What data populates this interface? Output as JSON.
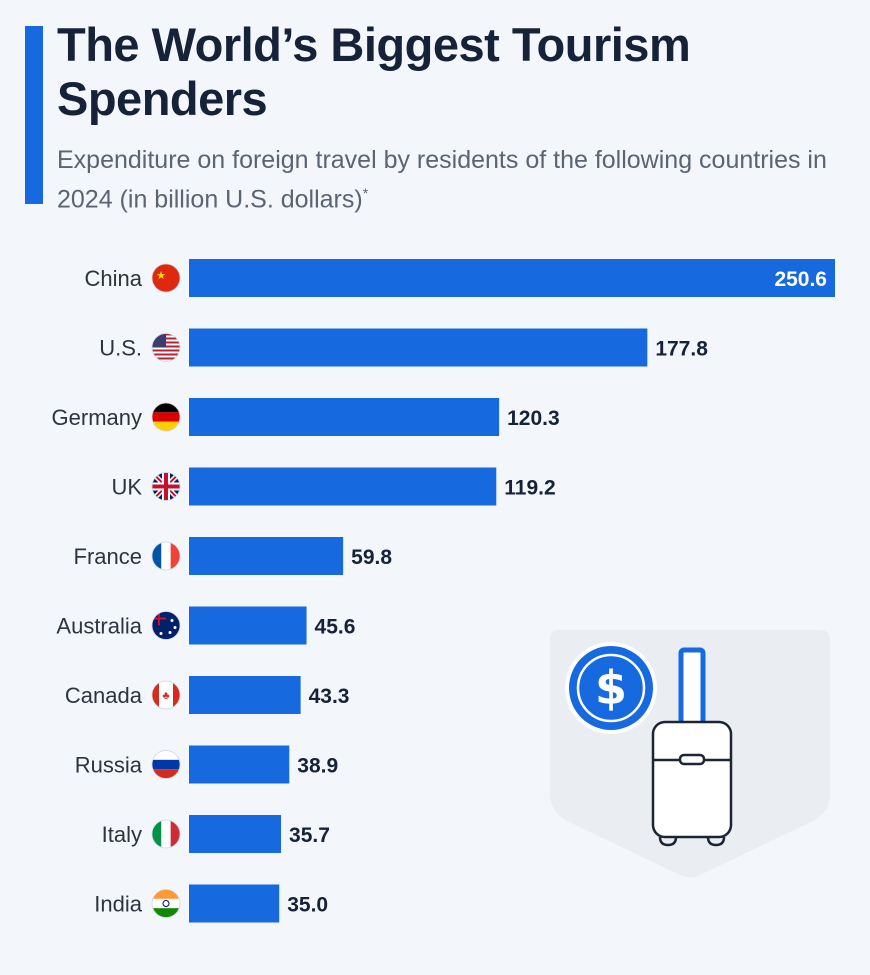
{
  "chart_data": {
    "type": "bar",
    "orientation": "horizontal",
    "title": "The World’s Biggest Tourism Spenders",
    "subtitle": "Expenditure on foreign travel by residents of the following countries in 2024 (in billion U.S. dollars)",
    "subtitle_note": "*",
    "categories": [
      "China",
      "U.S.",
      "Germany",
      "UK",
      "France",
      "Australia",
      "Canada",
      "Russia",
      "Italy",
      "India"
    ],
    "values": [
      250.6,
      177.8,
      120.3,
      119.2,
      59.8,
      45.6,
      43.3,
      38.9,
      35.7,
      35.0
    ],
    "value_labels": [
      "250.6",
      "177.8",
      "120.3",
      "119.2",
      "59.8",
      "45.6",
      "43.3",
      "38.9",
      "35.7",
      "35.0"
    ],
    "flags": [
      "china-flag",
      "us-flag",
      "germany-flag",
      "uk-flag",
      "france-flag",
      "australia-flag",
      "canada-flag",
      "russia-flag",
      "italy-flag",
      "india-flag"
    ],
    "xlim": [
      0,
      250.6
    ],
    "grid": false,
    "colors": {
      "bar": "#1769e0",
      "title": "#152238",
      "accent": "#1769e0"
    }
  },
  "illustration": {
    "icons": [
      "dollar-coin-icon",
      "suitcase-icon"
    ]
  }
}
